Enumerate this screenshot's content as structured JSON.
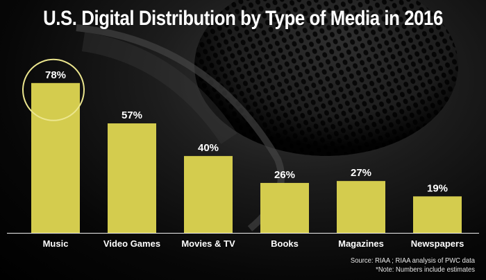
{
  "title": "U.S. Digital Distribution by Type of Media in 2016",
  "chart_data": {
    "type": "bar",
    "title": "U.S. Digital Distribution by Type of Media in 2016",
    "categories": [
      "Music",
      "Video Games",
      "Movies & TV",
      "Books",
      "Magazines",
      "Newspapers"
    ],
    "values": [
      78,
      57,
      40,
      26,
      27,
      19
    ],
    "value_labels": [
      "78%",
      "57%",
      "40%",
      "26%",
      "27%",
      "19%"
    ],
    "unit": "%",
    "ylim": [
      0,
      100
    ],
    "grid": false,
    "legend": "none",
    "highlight_category": "Music",
    "bar_color": "#d4cc4e",
    "highlight_circle_color": "#ece68e"
  },
  "notes": {
    "source": "Source: RIAA ; RIAA analysis of PWC data",
    "note": "*Note: Numbers include estimates"
  },
  "colors": {
    "background": "#000000",
    "text": "#ffffff",
    "bar": "#d4cc4e"
  }
}
